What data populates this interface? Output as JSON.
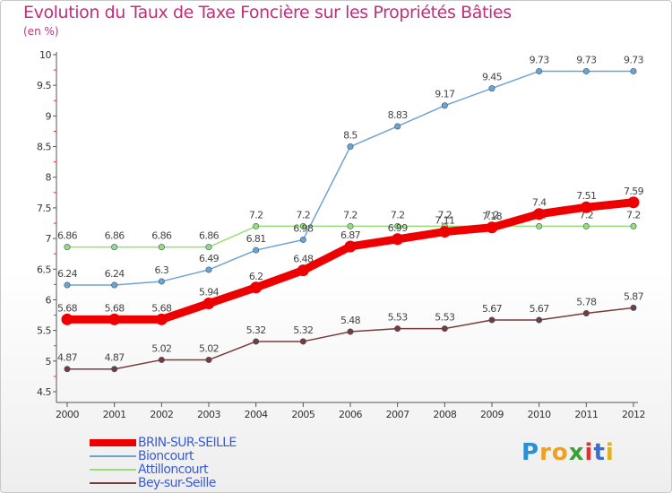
{
  "title": "Evolution du Taux de Taxe Foncière sur les Propriétés Bâties",
  "unit_label": "(en %)",
  "logo": {
    "letters": [
      "P",
      "r",
      "o",
      "x",
      "i",
      "t",
      "i"
    ],
    "colors": [
      "#2a8fd6",
      "#f0a020",
      "#f0a020",
      "#3aa13a",
      "#e03030",
      "#3a6fd0",
      "#e0b020"
    ]
  },
  "colors": {
    "accent": "#c0307a",
    "legend_text": "#3a5bd6",
    "axis": "#555555"
  },
  "chart_data": {
    "type": "line",
    "title": "Evolution du Taux de Taxe Foncière sur les Propriétés Bâties",
    "ylabel": "(en %)",
    "xlabel": "",
    "x": [
      "2000",
      "2001",
      "2002",
      "2003",
      "2004",
      "2005",
      "2006",
      "2007",
      "2008",
      "2009",
      "2010",
      "2011",
      "2012"
    ],
    "ylim": [
      4.5,
      10
    ],
    "yticks": [
      "4.5",
      "5",
      "5.5",
      "6",
      "6.5",
      "7",
      "7.5",
      "8",
      "8.5",
      "9",
      "9.5",
      "10"
    ],
    "grid": false,
    "legend_position": "bottom-left",
    "series": [
      {
        "name": "BRIN-SUR-SEILLE",
        "color": "#ee0000",
        "width": 9,
        "values": [
          5.68,
          5.68,
          5.68,
          5.94,
          6.2,
          6.48,
          6.87,
          6.99,
          7.11,
          7.18,
          7.4,
          7.51,
          7.59
        ],
        "labels": [
          "5.68",
          "5.68",
          "5.68",
          "5.94",
          "6.2",
          "6.48",
          "6.87",
          "6.99",
          "7.11",
          "7.18",
          "7.4",
          "7.51",
          "7.59"
        ]
      },
      {
        "name": "Bioncourt",
        "color": "#6fa3cf",
        "width": 1.5,
        "values": [
          6.24,
          6.24,
          6.3,
          6.49,
          6.81,
          6.98,
          8.5,
          8.83,
          9.17,
          9.45,
          9.73,
          9.73,
          9.73
        ],
        "labels": [
          "6.24",
          "6.24",
          "6.3",
          "6.49",
          "6.81",
          "6.98",
          "8.5",
          "8.83",
          "9.17",
          "9.45",
          "9.73",
          "9.73",
          "9.73"
        ]
      },
      {
        "name": "Attilloncourt",
        "color": "#99dd77",
        "width": 1.5,
        "values": [
          6.86,
          6.86,
          6.86,
          6.86,
          7.2,
          7.2,
          7.2,
          7.2,
          7.2,
          7.2,
          7.2,
          7.2,
          7.2
        ],
        "labels": [
          "6.86",
          "6.86",
          "6.86",
          "6.86",
          "7.2",
          "7.2",
          "7.2",
          "7.2",
          "7.2",
          "7.2",
          "7.2",
          "7.2",
          "7.2"
        ]
      },
      {
        "name": "Bey-sur-Seille",
        "color": "#7a3a3a",
        "width": 1.5,
        "values": [
          4.87,
          4.87,
          5.02,
          5.02,
          5.32,
          5.32,
          5.48,
          5.53,
          5.53,
          5.67,
          5.67,
          5.78,
          5.87
        ],
        "labels": [
          "4.87",
          "4.87",
          "5.02",
          "5.02",
          "5.32",
          "5.32",
          "5.48",
          "5.53",
          "5.53",
          "5.67",
          "5.67",
          "5.78",
          "5.87"
        ]
      }
    ]
  }
}
